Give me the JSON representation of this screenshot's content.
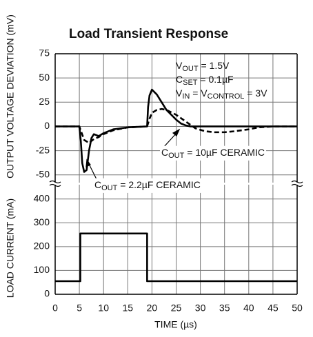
{
  "chart_data": [
    {
      "type": "line",
      "title": "Load Transient Response",
      "ylabel": "OUTPUT VOLTAGE DEVIATION (mV)",
      "xlim": [
        0,
        50
      ],
      "ylim": [
        -58,
        75
      ],
      "yticks": [
        75,
        50,
        25,
        0,
        -25,
        -50
      ],
      "grid": true,
      "annotations": [
        {
          "parts": [
            "V",
            "OUT",
            " = 1.5V"
          ]
        },
        {
          "parts": [
            "C",
            "SET",
            " = 0.1µF"
          ]
        },
        {
          "parts": [
            "V",
            "IN",
            " = V",
            "CONTROL",
            " = 3V"
          ]
        },
        {
          "parts": [
            "C",
            "OUT",
            " = 10µF CERAMIC"
          ]
        },
        {
          "parts": [
            "C",
            "OUT",
            " = 2.2µF CERAMIC"
          ]
        }
      ],
      "series": [
        {
          "style": "solid",
          "color": "#000000",
          "x": [
            0,
            5,
            5.3,
            5.6,
            6,
            6.5,
            7,
            7.5,
            8,
            9,
            10,
            12,
            15,
            19,
            19.2,
            19.5,
            20,
            21,
            22,
            23,
            24,
            25,
            26,
            27,
            28,
            30,
            35,
            40,
            45,
            50
          ],
          "values": [
            0,
            0,
            -15,
            -38,
            -47,
            -45,
            -25,
            -12,
            -8,
            -10,
            -7,
            -3,
            -1,
            0,
            20,
            32,
            38,
            33,
            25,
            17,
            12,
            7,
            3,
            1,
            0,
            0,
            0,
            0,
            0,
            0
          ]
        },
        {
          "style": "dashed",
          "color": "#000000",
          "x": [
            0,
            5,
            5.5,
            6,
            7,
            8,
            9,
            10,
            12,
            15,
            19,
            19.5,
            20,
            21,
            22,
            23,
            25,
            27,
            29,
            31,
            33,
            35,
            37,
            40,
            42,
            45,
            50
          ],
          "values": [
            0,
            0,
            -7,
            -14,
            -17,
            -13,
            -11,
            -8,
            -4,
            -1,
            0,
            8,
            14,
            17,
            18,
            17,
            12,
            5,
            -2,
            -5,
            -6,
            -6,
            -5,
            -3,
            -1,
            0,
            0
          ]
        }
      ]
    },
    {
      "type": "line",
      "ylabel": "LOAD CURRENT (mA)",
      "xlabel": "TIME (µs)",
      "xlim": [
        0,
        50
      ],
      "xticks": [
        0,
        5,
        10,
        15,
        20,
        25,
        30,
        35,
        40,
        45,
        50
      ],
      "ylim": [
        0,
        460
      ],
      "yticks": [
        400,
        300,
        200,
        100,
        0
      ],
      "grid": true,
      "series": [
        {
          "style": "solid",
          "color": "#000000",
          "x": [
            0,
            5.2,
            5.2,
            19,
            19,
            50
          ],
          "values": [
            55,
            55,
            255,
            255,
            55,
            55
          ]
        }
      ]
    }
  ]
}
